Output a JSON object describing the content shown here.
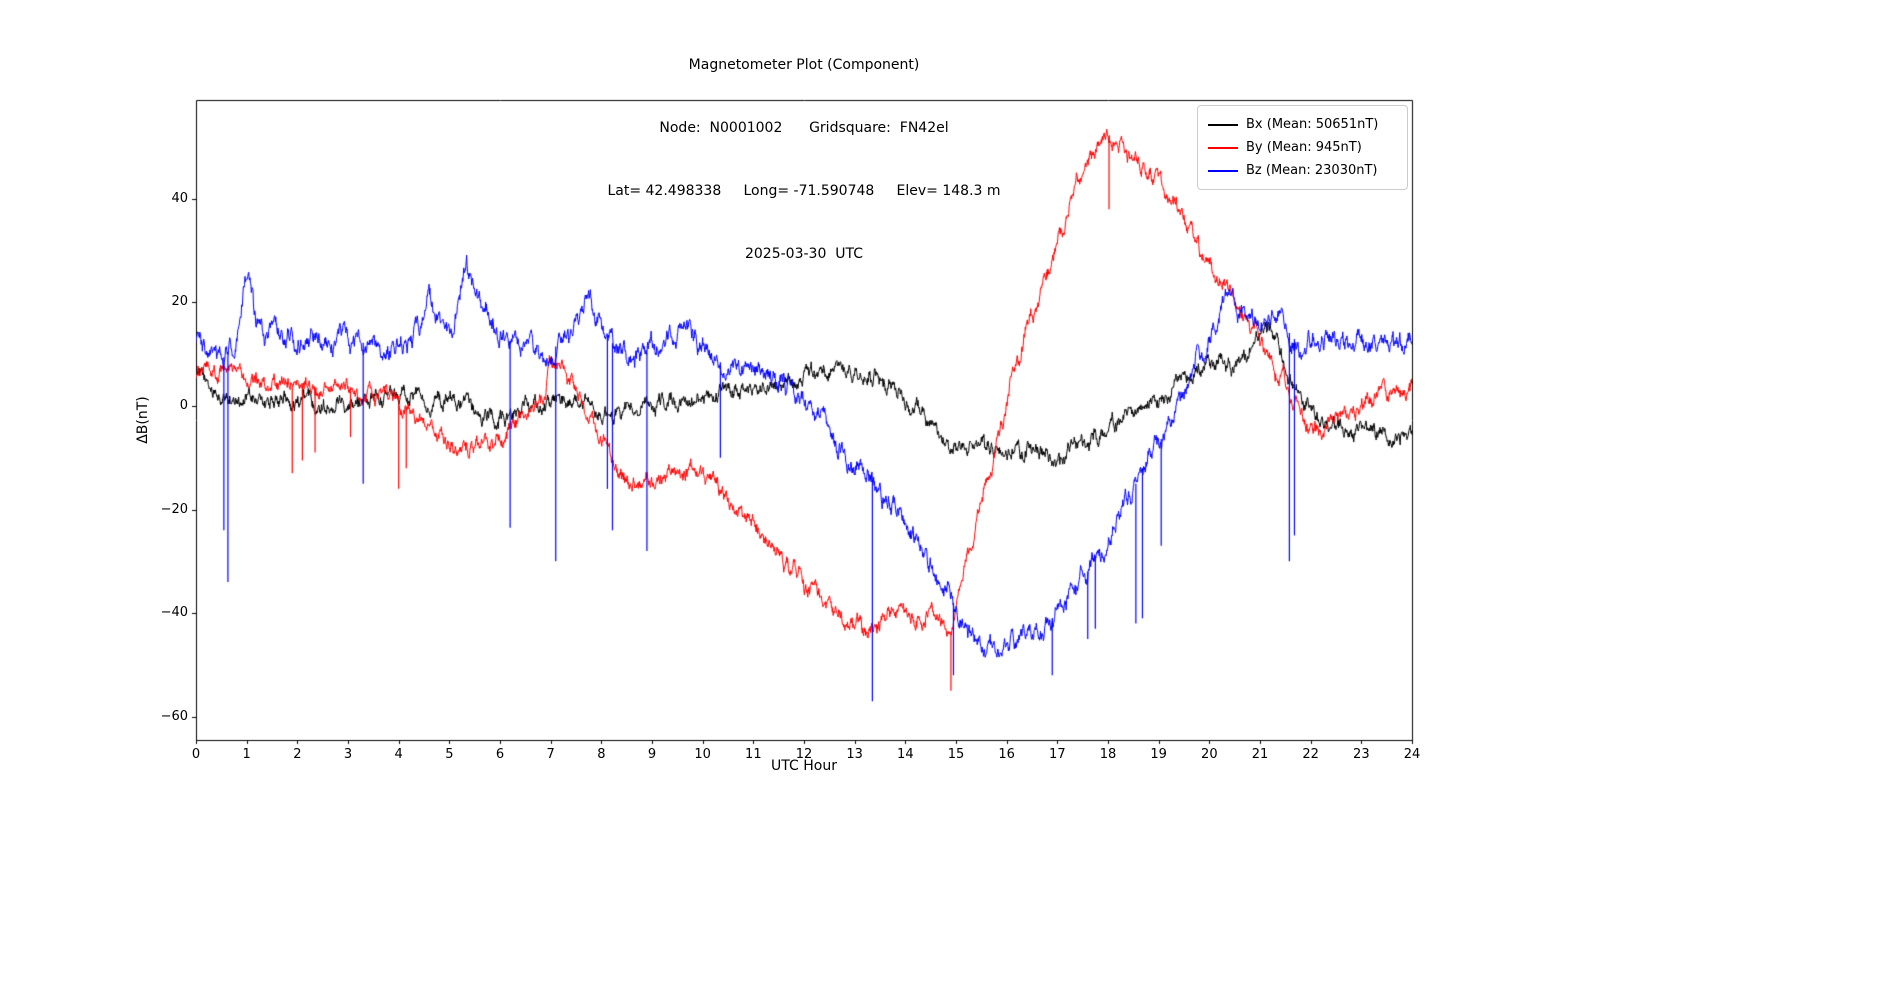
{
  "chart_data": {
    "type": "line",
    "title": "Magnetometer Plot (Component)",
    "subtitle_node": "Node:  N0001002      Gridsquare:  FN42el",
    "subtitle_location": "Lat= 42.498338     Long= -71.590748     Elev= 148.3 m",
    "subtitle_date": "2025-03-30  UTC",
    "xlabel": "UTC Hour",
    "ylabel": "ΔB(nT)",
    "xlim": [
      0,
      24
    ],
    "ylim": [
      -64.5,
      59.1
    ],
    "xticks": [
      0,
      1,
      2,
      3,
      4,
      5,
      6,
      7,
      8,
      9,
      10,
      11,
      12,
      13,
      14,
      15,
      16,
      17,
      18,
      19,
      20,
      21,
      22,
      23,
      24
    ],
    "xtick_labels": [
      "0",
      "1",
      "2",
      "3",
      "4",
      "5",
      "6",
      "7",
      "8",
      "9",
      "10",
      "11",
      "12",
      "13",
      "14",
      "15",
      "16",
      "17",
      "18",
      "19",
      "20",
      "21",
      "22",
      "23",
      "24"
    ],
    "yticks": [
      -60,
      -40,
      -20,
      0,
      20,
      40
    ],
    "ytick_labels": [
      "−60",
      "−40",
      "−20",
      "0",
      "20",
      "40"
    ],
    "grid": false,
    "legend_position": "upper right",
    "series": [
      {
        "name": "Bx",
        "label": "Bx (Mean: 50651nT)",
        "color": "#000000",
        "noise_amp": 1.8,
        "keypoints": [
          [
            0,
            8
          ],
          [
            0.15,
            5
          ],
          [
            0.3,
            3
          ],
          [
            0.5,
            1
          ],
          [
            0.8,
            1.5
          ],
          [
            1,
            1.5
          ],
          [
            1.3,
            0.5
          ],
          [
            1.6,
            1
          ],
          [
            2,
            1
          ],
          [
            2.4,
            0.5
          ],
          [
            2.8,
            1
          ],
          [
            3.2,
            1.5
          ],
          [
            3.6,
            1
          ],
          [
            4,
            1.5
          ],
          [
            4.3,
            2.5
          ],
          [
            4.6,
            1.5
          ],
          [
            5,
            0.5
          ],
          [
            5.4,
            -1
          ],
          [
            5.8,
            -2
          ],
          [
            6.2,
            -1.5
          ],
          [
            6.6,
            0
          ],
          [
            7,
            0.5
          ],
          [
            7.4,
            1
          ],
          [
            7.8,
            -0.5
          ],
          [
            8.2,
            -1.5
          ],
          [
            8.6,
            -1
          ],
          [
            9,
            0
          ],
          [
            9.4,
            0.5
          ],
          [
            9.8,
            1
          ],
          [
            10.2,
            1.5
          ],
          [
            10.6,
            3
          ],
          [
            11,
            3.5
          ],
          [
            11.4,
            4
          ],
          [
            11.8,
            4.5
          ],
          [
            12.2,
            6
          ],
          [
            12.6,
            7
          ],
          [
            13,
            6.5
          ],
          [
            13.4,
            5
          ],
          [
            13.8,
            3.5
          ],
          [
            14.2,
            0
          ],
          [
            14.6,
            -4
          ],
          [
            15,
            -8.5
          ],
          [
            15.4,
            -8
          ],
          [
            15.8,
            -7.5
          ],
          [
            16.2,
            -9
          ],
          [
            16.6,
            -9
          ],
          [
            17,
            -10
          ],
          [
            17.4,
            -8
          ],
          [
            17.8,
            -5.5
          ],
          [
            18.2,
            -3
          ],
          [
            18.6,
            -1.5
          ],
          [
            19,
            1
          ],
          [
            19.4,
            4
          ],
          [
            19.8,
            6.5
          ],
          [
            20.2,
            7.5
          ],
          [
            20.6,
            8
          ],
          [
            20.9,
            12
          ],
          [
            21.1,
            16
          ],
          [
            21.3,
            13
          ],
          [
            21.6,
            6
          ],
          [
            21.9,
            0
          ],
          [
            22.2,
            -3
          ],
          [
            22.6,
            -4
          ],
          [
            23,
            -5
          ],
          [
            23.4,
            -5.5
          ],
          [
            23.7,
            -6
          ],
          [
            24,
            -5.5
          ]
        ],
        "spikes": []
      },
      {
        "name": "By",
        "label": "By (Mean: 945nT)",
        "color": "#ff0000",
        "noise_amp": 1.8,
        "keypoints": [
          [
            0,
            6
          ],
          [
            0.2,
            7
          ],
          [
            0.4,
            5.5
          ],
          [
            0.6,
            6.5
          ],
          [
            0.8,
            5.5
          ],
          [
            1,
            5
          ],
          [
            1.4,
            4.5
          ],
          [
            1.8,
            4
          ],
          [
            2.2,
            3.5
          ],
          [
            2.6,
            3.5
          ],
          [
            3,
            3
          ],
          [
            3.4,
            2.5
          ],
          [
            3.8,
            1.5
          ],
          [
            4.1,
            0
          ],
          [
            4.4,
            -2.5
          ],
          [
            4.7,
            -4.5
          ],
          [
            5,
            -7.5
          ],
          [
            5.3,
            -8.5
          ],
          [
            5.6,
            -7.5
          ],
          [
            5.9,
            -6
          ],
          [
            6.2,
            -4.5
          ],
          [
            6.5,
            -2
          ],
          [
            6.8,
            3
          ],
          [
            7,
            6.5
          ],
          [
            7.2,
            8
          ],
          [
            7.4,
            5
          ],
          [
            7.6,
            1
          ],
          [
            7.8,
            -3
          ],
          [
            8,
            -8
          ],
          [
            8.3,
            -12.5
          ],
          [
            8.6,
            -15
          ],
          [
            8.9,
            -14.5
          ],
          [
            9.2,
            -13.5
          ],
          [
            9.5,
            -12.5
          ],
          [
            9.7,
            -12
          ],
          [
            10,
            -14
          ],
          [
            10.3,
            -16.5
          ],
          [
            10.6,
            -19
          ],
          [
            11,
            -22.5
          ],
          [
            11.4,
            -27
          ],
          [
            11.8,
            -31
          ],
          [
            12.2,
            -36
          ],
          [
            12.6,
            -40
          ],
          [
            13,
            -42
          ],
          [
            13.3,
            -43
          ],
          [
            13.6,
            -41
          ],
          [
            13.9,
            -39.5
          ],
          [
            14.1,
            -40.5
          ],
          [
            14.3,
            -41.5
          ],
          [
            14.5,
            -40
          ],
          [
            14.7,
            -42
          ],
          [
            14.9,
            -44
          ],
          [
            15.1,
            -35
          ],
          [
            15.3,
            -26
          ],
          [
            15.6,
            -15
          ],
          [
            15.9,
            -4
          ],
          [
            16.2,
            8
          ],
          [
            16.5,
            18
          ],
          [
            16.8,
            27
          ],
          [
            17.1,
            35
          ],
          [
            17.4,
            43
          ],
          [
            17.7,
            49
          ],
          [
            17.9,
            51.5
          ],
          [
            18.1,
            51
          ],
          [
            18.4,
            48.5
          ],
          [
            18.7,
            46
          ],
          [
            19,
            43
          ],
          [
            19.3,
            39
          ],
          [
            19.6,
            34
          ],
          [
            19.9,
            29
          ],
          [
            20.2,
            24
          ],
          [
            20.5,
            20
          ],
          [
            20.8,
            16
          ],
          [
            21.1,
            11
          ],
          [
            21.4,
            6
          ],
          [
            21.7,
            0
          ],
          [
            22,
            -3.5
          ],
          [
            22.2,
            -4.5
          ],
          [
            22.5,
            -3
          ],
          [
            22.8,
            -1
          ],
          [
            23.1,
            1
          ],
          [
            23.4,
            2.5
          ],
          [
            23.7,
            3
          ],
          [
            24,
            3.5
          ]
        ],
        "spikes": [
          [
            1.9,
            -13
          ],
          [
            2.1,
            -10.5
          ],
          [
            2.35,
            -9
          ],
          [
            3.05,
            -6
          ],
          [
            4.0,
            -16
          ],
          [
            4.15,
            -12
          ],
          [
            14.9,
            -55
          ],
          [
            18.02,
            38
          ]
        ]
      },
      {
        "name": "Bz",
        "label": "Bz (Mean: 23030nT)",
        "color": "#0000ff",
        "noise_amp": 2.2,
        "keypoints": [
          [
            0,
            12
          ],
          [
            0.2,
            10
          ],
          [
            0.4,
            9
          ],
          [
            0.6,
            9.5
          ],
          [
            0.8,
            13
          ],
          [
            0.95,
            24
          ],
          [
            1.05,
            25
          ],
          [
            1.2,
            16
          ],
          [
            1.4,
            13
          ],
          [
            1.7,
            14
          ],
          [
            2,
            13
          ],
          [
            2.3,
            13.5
          ],
          [
            2.6,
            12.5
          ],
          [
            2.9,
            13
          ],
          [
            3.2,
            12.5
          ],
          [
            3.5,
            11.5
          ],
          [
            3.8,
            11
          ],
          [
            4.1,
            12
          ],
          [
            4.4,
            15
          ],
          [
            4.6,
            21
          ],
          [
            4.8,
            16
          ],
          [
            5,
            13.5
          ],
          [
            5.2,
            21
          ],
          [
            5.35,
            27
          ],
          [
            5.5,
            24
          ],
          [
            5.7,
            18
          ],
          [
            5.9,
            14
          ],
          [
            6.2,
            12.5
          ],
          [
            6.5,
            11.5
          ],
          [
            6.8,
            11
          ],
          [
            7.1,
            11.5
          ],
          [
            7.4,
            13
          ],
          [
            7.6,
            18
          ],
          [
            7.75,
            21
          ],
          [
            7.9,
            17
          ],
          [
            8.1,
            13
          ],
          [
            8.4,
            10.5
          ],
          [
            8.7,
            9.5
          ],
          [
            9,
            10.5
          ],
          [
            9.3,
            13
          ],
          [
            9.6,
            16
          ],
          [
            9.8,
            13
          ],
          [
            10,
            10
          ],
          [
            10.3,
            8.5
          ],
          [
            10.6,
            8
          ],
          [
            11,
            7
          ],
          [
            11.4,
            5.5
          ],
          [
            11.8,
            3.5
          ],
          [
            12.1,
            0.5
          ],
          [
            12.4,
            -3
          ],
          [
            12.7,
            -7
          ],
          [
            13,
            -11
          ],
          [
            13.3,
            -14
          ],
          [
            13.6,
            -17.5
          ],
          [
            13.9,
            -21
          ],
          [
            14.2,
            -25
          ],
          [
            14.5,
            -30
          ],
          [
            14.8,
            -35
          ],
          [
            15.1,
            -41
          ],
          [
            15.4,
            -46
          ],
          [
            15.6,
            -48
          ],
          [
            15.8,
            -48.5
          ],
          [
            16,
            -47
          ],
          [
            16.3,
            -45.5
          ],
          [
            16.6,
            -44
          ],
          [
            16.9,
            -41.5
          ],
          [
            17.2,
            -37
          ],
          [
            17.5,
            -33
          ],
          [
            17.8,
            -29
          ],
          [
            18.1,
            -24
          ],
          [
            18.4,
            -18
          ],
          [
            18.7,
            -12
          ],
          [
            19,
            -7
          ],
          [
            19.2,
            -3
          ],
          [
            19.5,
            3
          ],
          [
            19.8,
            9
          ],
          [
            20.1,
            15
          ],
          [
            20.35,
            21
          ],
          [
            20.6,
            19.5
          ],
          [
            20.8,
            17
          ],
          [
            21,
            15.5
          ],
          [
            21.2,
            17
          ],
          [
            21.4,
            18
          ],
          [
            21.6,
            14
          ],
          [
            21.8,
            11
          ],
          [
            22,
            12
          ],
          [
            22.3,
            13.5
          ],
          [
            22.6,
            12.5
          ],
          [
            22.9,
            13
          ],
          [
            23.2,
            12
          ],
          [
            23.5,
            13
          ],
          [
            23.8,
            12.5
          ],
          [
            24,
            13
          ]
        ],
        "spikes": [
          [
            0.55,
            -24
          ],
          [
            0.63,
            -34
          ],
          [
            3.3,
            -15
          ],
          [
            6.2,
            -23.5
          ],
          [
            7.1,
            -30
          ],
          [
            8.12,
            -16
          ],
          [
            8.22,
            -24
          ],
          [
            8.9,
            -28
          ],
          [
            10.35,
            -10
          ],
          [
            13.35,
            -57
          ],
          [
            14.95,
            -52
          ],
          [
            16.9,
            -52
          ],
          [
            17.6,
            -45
          ],
          [
            17.75,
            -43
          ],
          [
            18.55,
            -42
          ],
          [
            18.68,
            -41
          ],
          [
            19.05,
            -27
          ],
          [
            21.58,
            -30
          ],
          [
            21.68,
            -25
          ]
        ]
      }
    ]
  }
}
